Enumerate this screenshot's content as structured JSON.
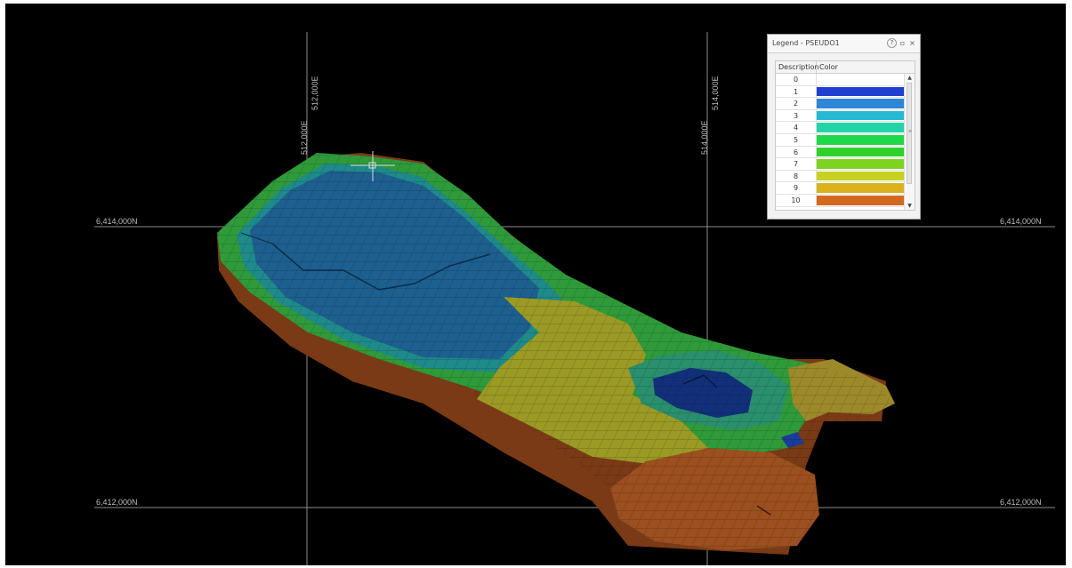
{
  "grid": {
    "x_labels": [
      "512,000E",
      "512,000E",
      "514,000E",
      "514,000E"
    ],
    "y_labels": [
      "6,414,000N",
      "6,414,000N",
      "6,412,000N",
      "6,412,000N"
    ]
  },
  "legend": {
    "title": "Legend - PSEUDO1",
    "help_icon": "?",
    "restore_icon": "▫",
    "close_icon": "×",
    "columns": {
      "description": "Description",
      "color": "Color"
    },
    "items": [
      {
        "description": "0",
        "color": "#ffffff"
      },
      {
        "description": "1",
        "color": "#1f3fd0"
      },
      {
        "description": "2",
        "color": "#2e86d6"
      },
      {
        "description": "3",
        "color": "#27b9d2"
      },
      {
        "description": "4",
        "color": "#22d3a8"
      },
      {
        "description": "5",
        "color": "#1fd84a"
      },
      {
        "description": "6",
        "color": "#2ed12a"
      },
      {
        "description": "7",
        "color": "#7ed321"
      },
      {
        "description": "8",
        "color": "#c8d11f"
      },
      {
        "description": "9",
        "color": "#d9b21e"
      },
      {
        "description": "10",
        "color": "#d2691e"
      }
    ]
  },
  "colors": {
    "viewport_bg": "#000000",
    "grid_line": "#8c8c8c",
    "model_blue": "#1d5f8f",
    "model_deep_blue": "#12307a",
    "model_yellow": "#9a9a25",
    "model_orange": "#9c4f1f",
    "model_green": "#2f9a3a",
    "model_teal": "#1f8a8a"
  }
}
